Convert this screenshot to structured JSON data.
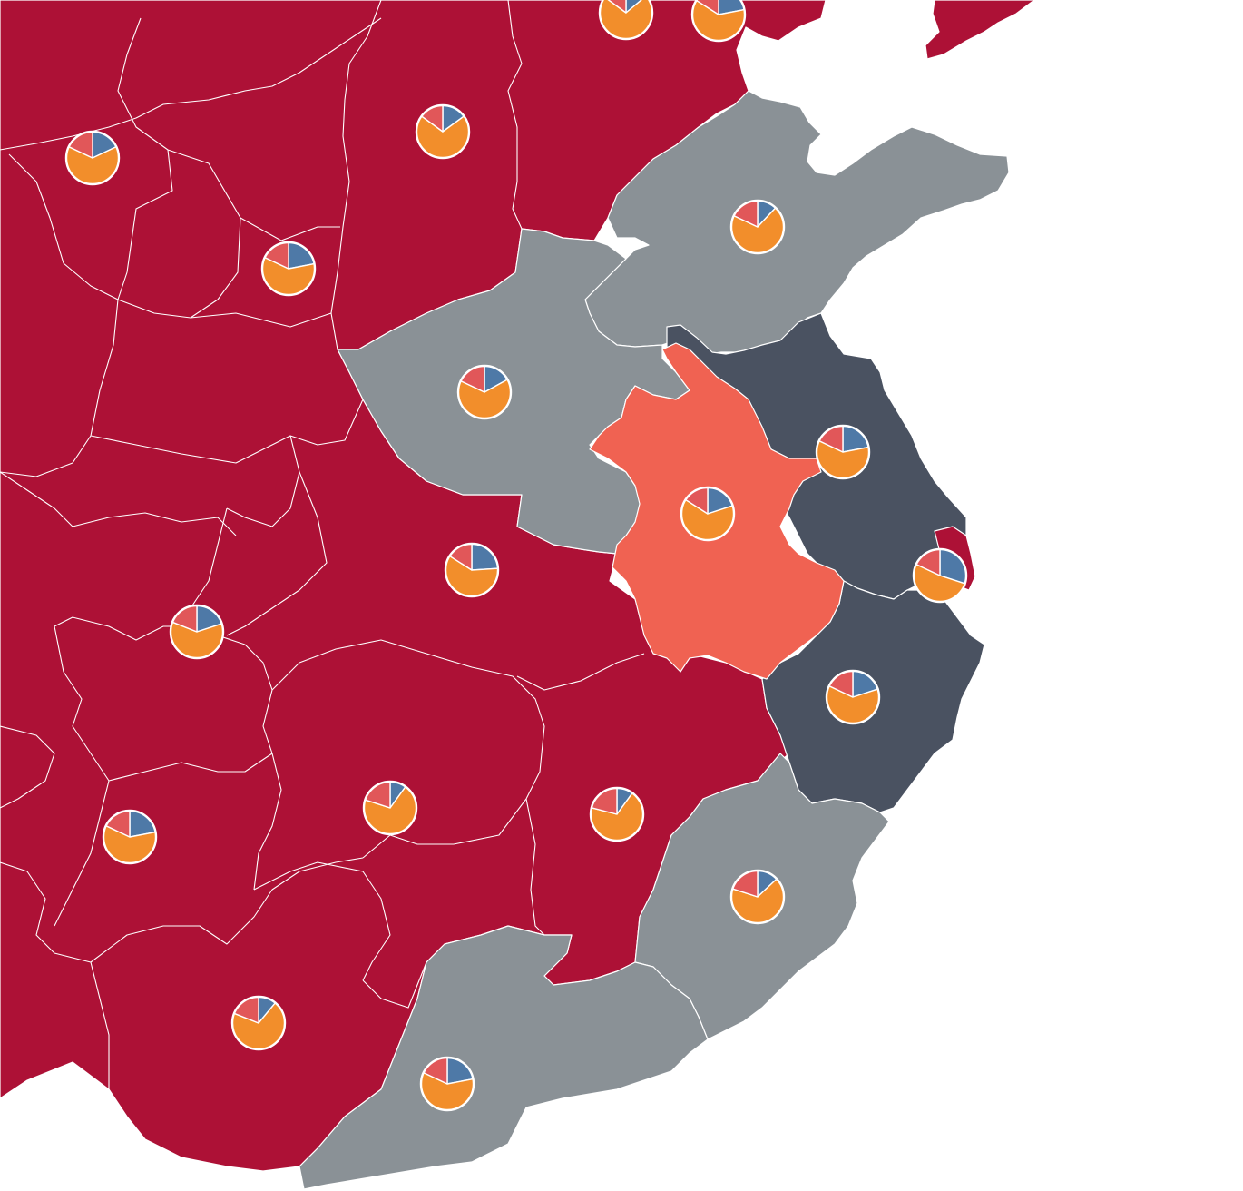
{
  "map": {
    "category_colors": {
      "crimson": "#ad1136",
      "gray": "#8a9196",
      "dark": "#4a5261",
      "coral": "#f06252",
      "sea": "#ffffff"
    },
    "pie_colors": [
      "#4e79a7",
      "#f28e2b",
      "#e15759"
    ],
    "regions": [
      {
        "id": "west-crimson",
        "category": "crimson"
      },
      {
        "id": "shandong",
        "category": "gray"
      },
      {
        "id": "henan",
        "category": "gray"
      },
      {
        "id": "fujian",
        "category": "gray"
      },
      {
        "id": "guangdong",
        "category": "gray"
      },
      {
        "id": "jiangsu",
        "category": "dark"
      },
      {
        "id": "zhejiang",
        "category": "dark"
      },
      {
        "id": "anhui",
        "category": "coral"
      },
      {
        "id": "shanghai",
        "category": "crimson"
      },
      {
        "id": "liaoning",
        "category": "crimson"
      }
    ],
    "pies": [
      {
        "id": "pie-beijing",
        "values": [
          0.14,
          0.71,
          0.15
        ]
      },
      {
        "id": "pie-tianjin",
        "values": [
          0.22,
          0.62,
          0.16
        ]
      },
      {
        "id": "pie-ningxia",
        "values": [
          0.18,
          0.64,
          0.18
        ]
      },
      {
        "id": "pie-shanxi",
        "values": [
          0.15,
          0.7,
          0.15
        ]
      },
      {
        "id": "pie-shaanxi",
        "values": [
          0.22,
          0.6,
          0.18
        ]
      },
      {
        "id": "pie-shandong",
        "values": [
          0.12,
          0.7,
          0.18
        ]
      },
      {
        "id": "pie-henan",
        "values": [
          0.17,
          0.65,
          0.18
        ]
      },
      {
        "id": "pie-jiangsu",
        "values": [
          0.22,
          0.6,
          0.18
        ]
      },
      {
        "id": "pie-anhui",
        "values": [
          0.2,
          0.64,
          0.16
        ]
      },
      {
        "id": "pie-shanghai",
        "values": [
          0.3,
          0.52,
          0.18
        ]
      },
      {
        "id": "pie-hubei",
        "values": [
          0.24,
          0.6,
          0.16
        ]
      },
      {
        "id": "pie-chongqing",
        "values": [
          0.2,
          0.61,
          0.19
        ]
      },
      {
        "id": "pie-zhejiang",
        "values": [
          0.2,
          0.62,
          0.18
        ]
      },
      {
        "id": "pie-guizhou",
        "values": [
          0.22,
          0.6,
          0.18
        ]
      },
      {
        "id": "pie-hunan",
        "values": [
          0.1,
          0.7,
          0.2
        ]
      },
      {
        "id": "pie-jiangxi",
        "values": [
          0.1,
          0.69,
          0.21
        ]
      },
      {
        "id": "pie-fujian",
        "values": [
          0.13,
          0.67,
          0.2
        ]
      },
      {
        "id": "pie-guangxi",
        "values": [
          0.11,
          0.7,
          0.19
        ]
      },
      {
        "id": "pie-guangdong",
        "values": [
          0.22,
          0.6,
          0.18
        ]
      }
    ]
  }
}
